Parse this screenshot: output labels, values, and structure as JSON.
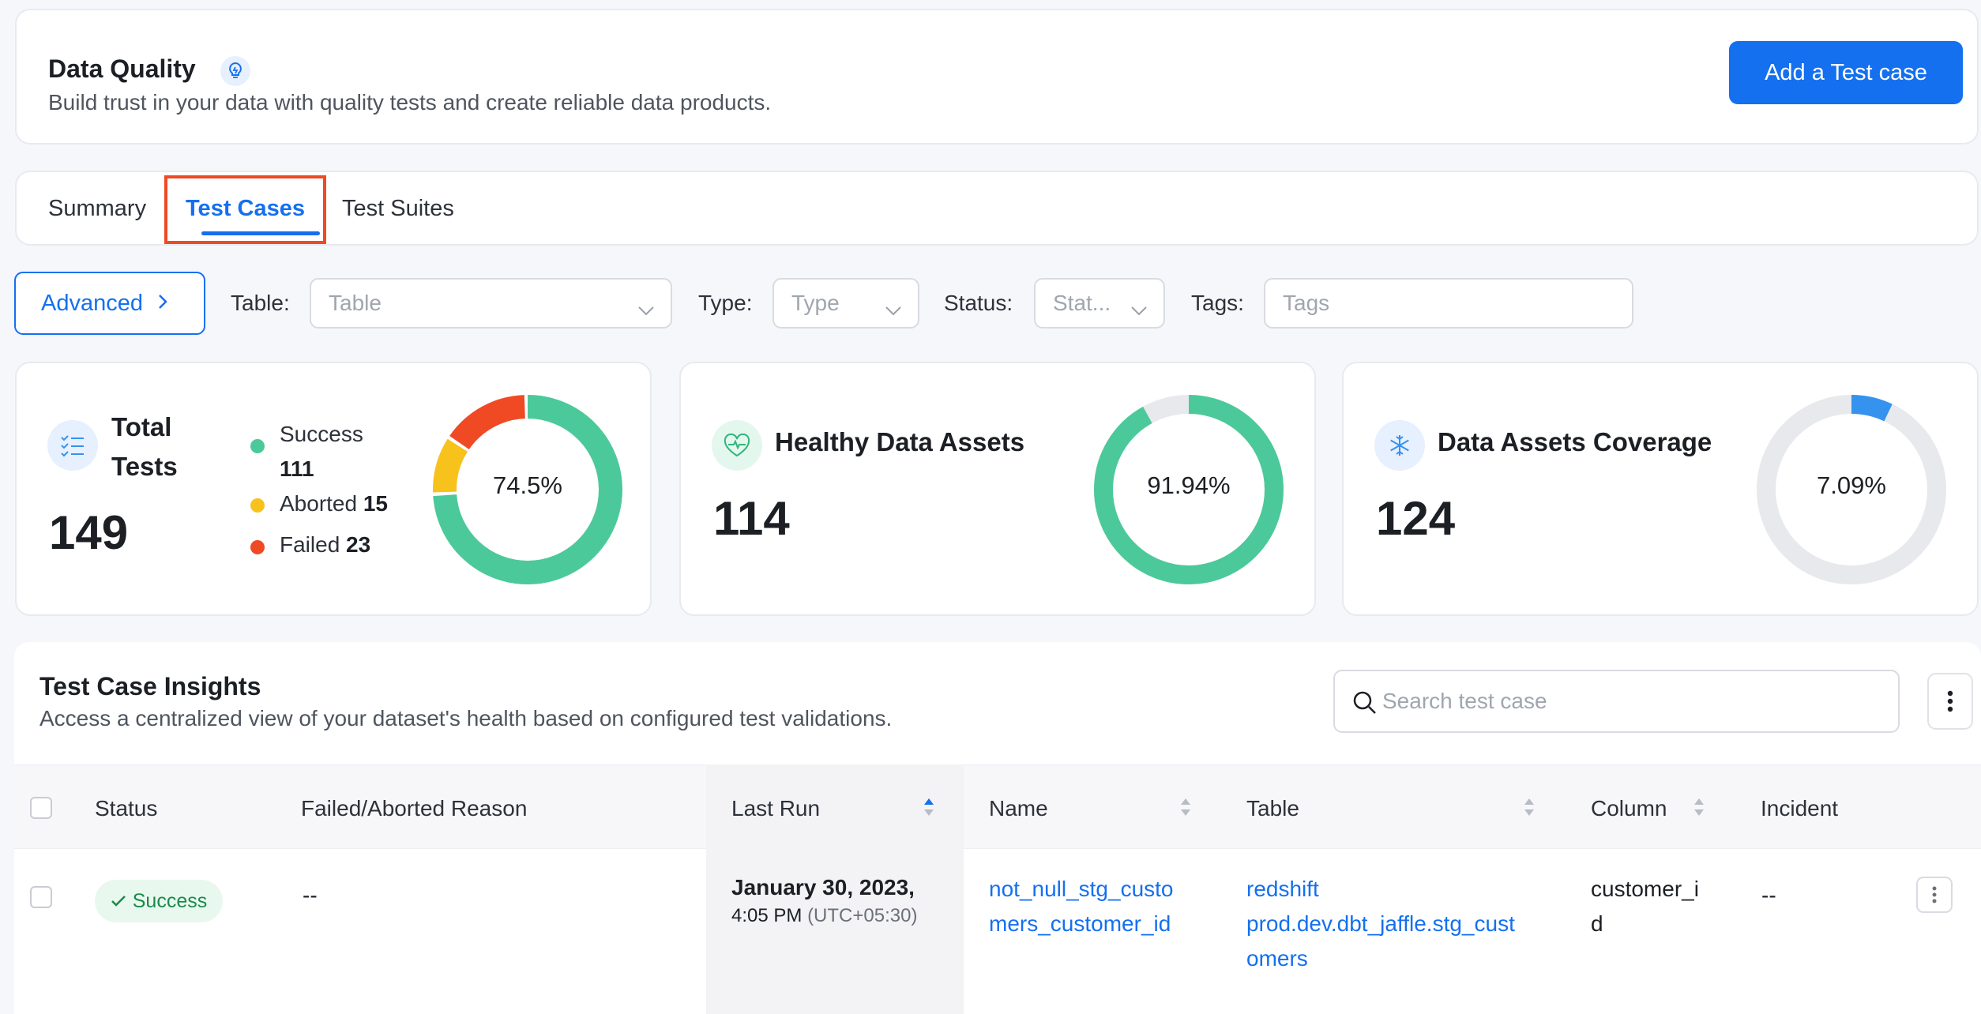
{
  "header": {
    "title": "Data Quality",
    "subtitle": "Build trust in your data with quality tests and create reliable data products.",
    "add_button": "Add a Test case"
  },
  "tabs": [
    {
      "label": "Summary",
      "active": false
    },
    {
      "label": "Test Cases",
      "active": true
    },
    {
      "label": "Test Suites",
      "active": false
    }
  ],
  "filters": {
    "advanced_label": "Advanced",
    "table_label": "Table",
    "table_placeholder": "Table",
    "type_label": "Type",
    "type_placeholder": "Type",
    "status_label": "Status",
    "status_placeholder": "Stat...",
    "tags_label": "Tags",
    "tags_placeholder": "Tags",
    "colon": ":"
  },
  "stats": {
    "total_tests": {
      "title": "Total Tests",
      "value": "149",
      "percent_label": "74.5%",
      "legend": [
        {
          "label": "Success",
          "value": "111",
          "color": "#4cc99a"
        },
        {
          "label": "Aborted",
          "value": "15",
          "color": "#f8c21c"
        },
        {
          "label": "Failed",
          "value": "23",
          "color": "#ef4a24"
        }
      ]
    },
    "healthy_assets": {
      "title": "Healthy Data Assets",
      "value": "114",
      "percent_label": "91.94%",
      "fraction": 0.9194,
      "color": "#4cc99a"
    },
    "coverage": {
      "title": "Data Assets Coverage",
      "value": "124",
      "percent_label": "7.09%",
      "fraction": 0.0709,
      "color": "#3592ee"
    }
  },
  "insights": {
    "title": "Test Case Insights",
    "subtitle": "Access a centralized view of your dataset's health based on configured test validations.",
    "search_placeholder": "Search test case",
    "columns": [
      "Status",
      "Failed/Aborted Reason",
      "Last Run",
      "Name",
      "Table",
      "Column",
      "Incident"
    ],
    "rows": [
      {
        "status": "Success",
        "reason": "--",
        "last_run_date": "January 30, 2023,",
        "last_run_time": "4:05 PM",
        "last_run_tz": "(UTC+05:30)",
        "name_line1": "not_null_stg_custo",
        "name_line2": "mers_customer_id",
        "table_line1": "redshift",
        "table_line2": "prod.dev.dbt_jaffle.stg_cust",
        "table_line3": "omers",
        "column_line1": "customer_i",
        "column_line2": "d",
        "incident": "--"
      }
    ]
  }
}
